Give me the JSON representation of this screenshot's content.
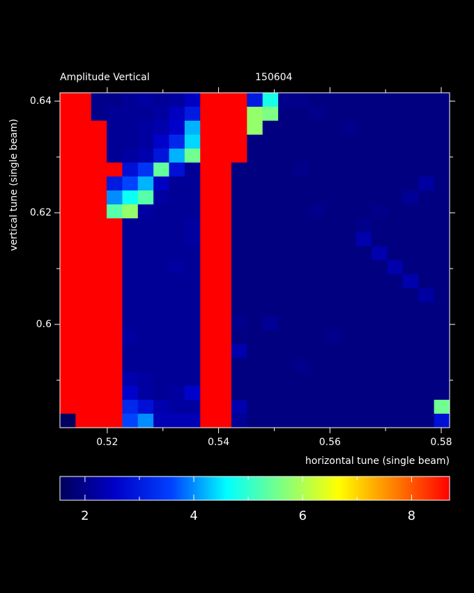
{
  "chart_data": {
    "type": "heatmap",
    "title": "Amplitude Vertical",
    "subtitle": "150604",
    "xlabel": "horizontal tune (single beam)",
    "ylabel": "vertical tune (single beam)",
    "xlim": [
      0.5115,
      0.5815
    ],
    "ylim": [
      0.5815,
      0.6415
    ],
    "xticks": [
      0.52,
      0.54,
      0.56,
      0.58
    ],
    "yticks": [
      0.6,
      0.62,
      0.64
    ],
    "xminor": [
      0.53,
      0.55,
      0.57
    ],
    "yminor": [
      0.59,
      0.61,
      0.63
    ],
    "zlim": [
      1.54,
      8.7
    ],
    "zticks": [
      2,
      4,
      6,
      8
    ],
    "zminor": [
      3,
      5,
      7
    ],
    "colormap": [
      "#00005a",
      "#0000c8",
      "#0040ff",
      "#00ffff",
      "#80ff80",
      "#ffff00",
      "#ff8000",
      "#ff0000"
    ],
    "x": [
      0.5129,
      0.5157,
      0.5185,
      0.5213,
      0.5241,
      0.5269,
      0.5297,
      0.5325,
      0.5353,
      0.5381,
      0.5409,
      0.5437,
      0.5465,
      0.5493,
      0.5521,
      0.5549,
      0.5577,
      0.5605,
      0.5633,
      0.5661,
      0.5689,
      0.5717,
      0.5745,
      0.5773,
      0.5801
    ],
    "y": [
      0.64025,
      0.63775,
      0.63525,
      0.63275,
      0.63025,
      0.62775,
      0.62525,
      0.62275,
      0.62025,
      0.61775,
      0.61525,
      0.61275,
      0.61025,
      0.60775,
      0.60525,
      0.60275,
      0.60025,
      0.59775,
      0.59525,
      0.59275,
      0.59025,
      0.58775,
      0.58525,
      0.58275
    ],
    "z": [
      [
        8.7,
        8.7,
        2.0,
        2.0,
        2.1,
        2.2,
        2.1,
        2.2,
        2.5,
        8.7,
        8.7,
        8.7,
        3.0,
        4.8,
        2.0,
        2.0,
        1.9,
        1.9,
        1.9,
        1.9,
        1.9,
        1.9,
        1.9,
        1.9,
        1.9
      ],
      [
        8.7,
        8.7,
        2.0,
        2.1,
        2.1,
        2.1,
        2.2,
        2.5,
        3.0,
        8.7,
        8.7,
        8.7,
        5.8,
        5.6,
        1.9,
        1.9,
        2.0,
        1.9,
        1.9,
        1.9,
        1.9,
        1.9,
        1.9,
        1.9,
        1.9
      ],
      [
        8.7,
        8.7,
        8.7,
        2.1,
        2.1,
        2.2,
        2.3,
        2.6,
        4.2,
        8.7,
        8.7,
        8.7,
        5.8,
        1.9,
        1.9,
        1.9,
        1.9,
        1.9,
        2.0,
        1.9,
        1.9,
        1.9,
        1.9,
        1.9,
        1.9
      ],
      [
        8.7,
        8.7,
        8.7,
        2.1,
        2.1,
        2.2,
        2.6,
        3.2,
        4.4,
        8.7,
        8.7,
        8.7,
        1.9,
        1.9,
        1.9,
        1.9,
        1.9,
        1.9,
        1.9,
        1.9,
        1.9,
        1.9,
        1.9,
        1.9,
        1.9
      ],
      [
        8.7,
        8.7,
        8.7,
        2.1,
        2.2,
        2.3,
        2.9,
        4.2,
        5.5,
        8.7,
        8.7,
        8.7,
        1.9,
        1.9,
        1.9,
        1.9,
        1.9,
        1.9,
        1.9,
        1.9,
        1.9,
        1.9,
        1.9,
        1.9,
        1.9
      ],
      [
        8.7,
        8.7,
        8.7,
        8.7,
        2.8,
        3.4,
        5.4,
        2.8,
        2.1,
        8.7,
        8.7,
        1.9,
        1.9,
        1.9,
        1.9,
        2.0,
        1.9,
        1.9,
        1.9,
        1.9,
        1.9,
        1.9,
        1.9,
        1.9,
        1.9
      ],
      [
        8.7,
        8.7,
        8.7,
        3.0,
        3.6,
        4.2,
        2.5,
        2.1,
        2.1,
        8.7,
        8.7,
        1.9,
        1.9,
        1.9,
        1.9,
        1.9,
        1.9,
        1.9,
        1.9,
        1.9,
        1.9,
        1.9,
        1.9,
        2.2,
        1.9
      ],
      [
        8.7,
        8.7,
        8.7,
        4.0,
        4.7,
        5.3,
        2.2,
        2.1,
        2.1,
        8.7,
        8.7,
        1.9,
        1.9,
        1.9,
        1.9,
        1.9,
        1.9,
        1.9,
        1.9,
        1.9,
        1.9,
        1.9,
        2.1,
        1.9,
        1.9
      ],
      [
        8.7,
        8.7,
        8.7,
        5.3,
        5.8,
        2.2,
        2.1,
        2.1,
        2.1,
        8.7,
        8.7,
        1.9,
        1.9,
        1.9,
        1.9,
        1.9,
        2.0,
        1.9,
        1.9,
        1.9,
        2.0,
        1.9,
        1.9,
        1.9,
        1.9
      ],
      [
        8.7,
        8.7,
        8.7,
        8.7,
        2.1,
        2.1,
        2.1,
        2.1,
        2.2,
        8.7,
        8.7,
        1.9,
        1.9,
        1.9,
        1.9,
        1.9,
        1.9,
        1.9,
        1.9,
        2.0,
        1.9,
        1.9,
        1.9,
        1.9,
        1.9
      ],
      [
        8.7,
        8.7,
        8.7,
        8.7,
        2.1,
        2.1,
        2.1,
        2.1,
        2.2,
        8.7,
        8.7,
        1.9,
        1.9,
        1.9,
        1.9,
        1.9,
        1.9,
        1.9,
        1.9,
        2.3,
        1.9,
        1.9,
        1.9,
        1.9,
        1.9
      ],
      [
        8.7,
        8.7,
        8.7,
        8.7,
        2.1,
        2.1,
        2.1,
        2.1,
        2.1,
        8.7,
        8.7,
        1.9,
        1.9,
        1.9,
        1.9,
        1.9,
        1.9,
        1.9,
        1.9,
        1.9,
        2.3,
        1.9,
        1.9,
        1.9,
        1.9
      ],
      [
        8.7,
        8.7,
        8.7,
        8.7,
        2.1,
        2.1,
        2.1,
        2.2,
        2.1,
        8.7,
        8.7,
        1.9,
        1.9,
        1.9,
        1.9,
        1.9,
        1.9,
        1.9,
        1.9,
        1.9,
        1.9,
        2.3,
        1.9,
        1.9,
        1.9
      ],
      [
        8.7,
        8.7,
        8.7,
        8.7,
        2.1,
        2.1,
        2.1,
        2.1,
        2.1,
        8.7,
        8.7,
        1.9,
        1.9,
        1.9,
        1.9,
        1.9,
        1.9,
        1.9,
        1.9,
        1.9,
        1.9,
        1.9,
        2.3,
        1.9,
        1.9
      ],
      [
        8.7,
        8.7,
        8.7,
        8.7,
        2.1,
        2.1,
        2.1,
        2.1,
        2.1,
        8.7,
        8.7,
        1.9,
        1.9,
        1.9,
        1.9,
        1.9,
        1.9,
        1.9,
        1.9,
        1.9,
        1.9,
        1.9,
        1.9,
        2.2,
        1.9
      ],
      [
        8.7,
        8.7,
        8.7,
        8.7,
        2.1,
        2.1,
        2.1,
        2.1,
        2.1,
        8.7,
        8.7,
        1.9,
        1.9,
        1.9,
        1.9,
        1.9,
        1.9,
        1.9,
        1.9,
        1.9,
        1.9,
        1.9,
        1.9,
        1.9,
        1.9
      ],
      [
        8.7,
        8.7,
        8.7,
        8.7,
        2.1,
        2.1,
        2.1,
        2.1,
        2.1,
        8.7,
        8.7,
        2.0,
        1.9,
        2.1,
        1.9,
        1.9,
        1.9,
        1.9,
        1.9,
        1.9,
        1.9,
        1.9,
        1.9,
        1.9,
        1.9
      ],
      [
        8.7,
        8.7,
        8.7,
        8.7,
        2.2,
        2.1,
        2.1,
        2.1,
        2.1,
        8.7,
        8.7,
        1.9,
        1.9,
        1.9,
        1.9,
        1.9,
        1.9,
        2.0,
        1.9,
        1.9,
        1.9,
        1.9,
        1.9,
        1.9,
        1.9
      ],
      [
        8.7,
        8.7,
        8.7,
        8.7,
        2.1,
        2.1,
        2.1,
        2.1,
        2.1,
        8.7,
        8.7,
        2.3,
        1.9,
        1.9,
        1.9,
        1.9,
        1.9,
        1.9,
        1.9,
        1.9,
        1.9,
        1.9,
        1.9,
        1.9,
        1.9
      ],
      [
        8.7,
        8.7,
        8.7,
        8.7,
        2.1,
        2.1,
        2.1,
        2.1,
        2.1,
        8.7,
        8.7,
        1.9,
        1.9,
        1.9,
        1.9,
        2.0,
        1.9,
        1.9,
        1.9,
        1.9,
        1.9,
        1.9,
        1.9,
        1.9,
        1.9
      ],
      [
        8.7,
        8.7,
        8.7,
        8.7,
        2.3,
        2.2,
        2.1,
        2.1,
        2.1,
        8.7,
        8.7,
        1.9,
        1.9,
        1.9,
        1.9,
        1.9,
        1.9,
        1.9,
        1.9,
        1.9,
        1.9,
        1.9,
        1.9,
        1.9,
        1.9
      ],
      [
        8.7,
        8.7,
        8.7,
        8.7,
        2.6,
        2.2,
        2.1,
        2.2,
        2.6,
        8.7,
        8.7,
        1.9,
        1.9,
        1.9,
        1.9,
        1.9,
        1.9,
        1.9,
        1.9,
        1.9,
        1.9,
        1.9,
        1.9,
        1.9,
        1.9
      ],
      [
        8.7,
        8.7,
        8.7,
        8.7,
        3.2,
        2.8,
        2.3,
        2.2,
        2.2,
        8.7,
        8.7,
        2.3,
        1.9,
        1.9,
        1.9,
        1.9,
        1.9,
        1.9,
        1.9,
        1.9,
        1.9,
        1.9,
        1.9,
        1.9,
        5.5
      ],
      [
        1.6,
        8.7,
        8.7,
        8.7,
        3.6,
        4.0,
        2.4,
        2.4,
        2.4,
        8.7,
        8.7,
        2.1,
        1.9,
        1.9,
        1.9,
        1.9,
        1.9,
        1.9,
        1.9,
        1.9,
        1.9,
        1.9,
        1.9,
        1.9,
        2.8
      ]
    ]
  }
}
